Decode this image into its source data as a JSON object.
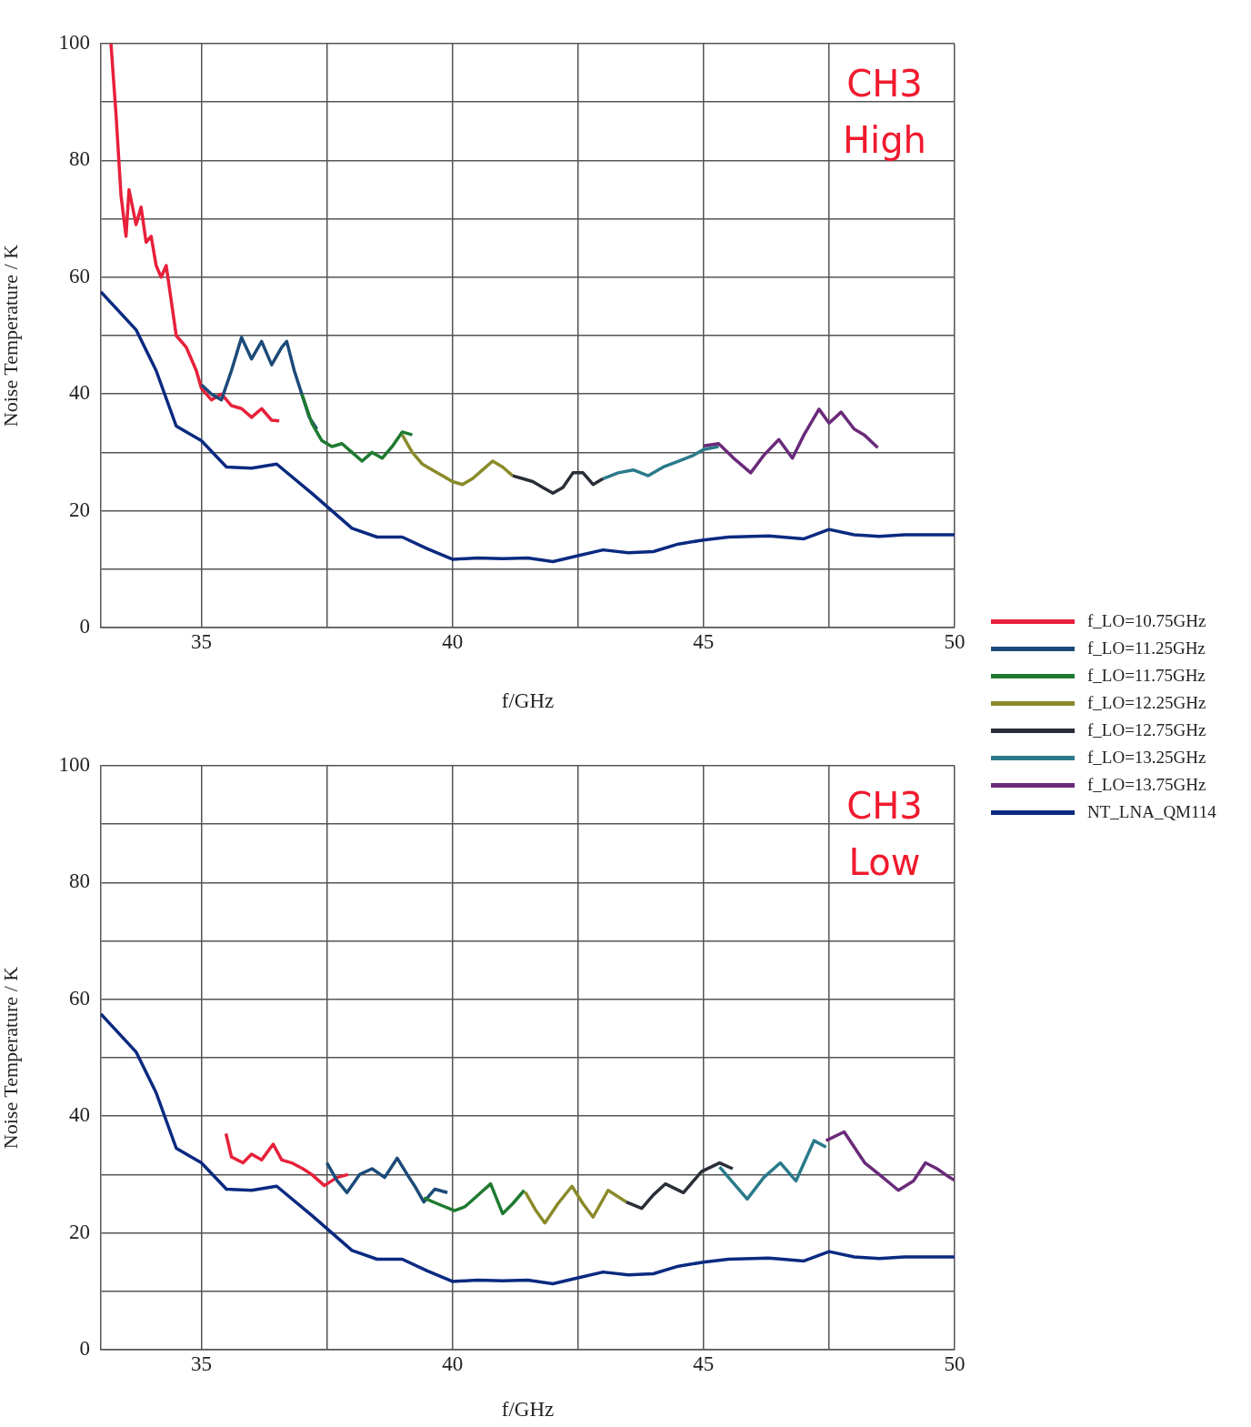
{
  "chart_data": [
    {
      "type": "line",
      "xlabel": "f/GHz",
      "ylabel": "Noise Temperature / K",
      "annotations": [
        "CH3 High"
      ],
      "xlim": [
        33,
        50
      ],
      "ylim": [
        0,
        100
      ],
      "xticks": [
        35,
        {
          "value": 37.5,
          "label": null
        },
        40,
        {
          "value": 42.5,
          "label": null
        },
        45,
        {
          "value": 47.5,
          "label": null
        },
        50
      ],
      "yticks": [
        0,
        {
          "value": 10,
          "label": null
        },
        20,
        {
          "value": 30,
          "label": null
        },
        40,
        {
          "value": 50,
          "label": null
        },
        60,
        {
          "value": 70,
          "label": null
        },
        80,
        {
          "value": 90,
          "label": null
        },
        100
      ],
      "grid": true,
      "legend": "right",
      "line_style": "solid",
      "series": [
        {
          "name": "f_LO=10.75GHz",
          "color": "#e8203a",
          "x": [
            33.2,
            33.3,
            33.4,
            33.5,
            33.56,
            33.7,
            33.8,
            33.9,
            34.0,
            34.1,
            34.2,
            34.3,
            34.4,
            34.5,
            34.7,
            34.9,
            35.0,
            35.2,
            35.4,
            35.6,
            35.8,
            36.0,
            36.2,
            36.4,
            36.55
          ],
          "values": [
            100,
            88,
            74,
            67,
            75,
            69,
            72,
            66,
            67,
            62,
            60,
            62,
            56,
            50,
            48,
            44,
            41,
            39,
            40,
            38,
            37.5,
            36,
            37.5,
            35.5,
            35.4
          ]
        },
        {
          "name": "f_LO=11.25GHz",
          "color": "#1c4a78",
          "x": [
            35.0,
            35.2,
            35.4,
            35.6,
            35.8,
            36.0,
            36.2,
            36.4,
            36.6,
            36.7,
            36.85,
            37.0,
            37.15,
            37.3
          ],
          "values": [
            41.6,
            40,
            39,
            44,
            49.7,
            46,
            49,
            45,
            48,
            49,
            44,
            40,
            36,
            34
          ]
        },
        {
          "name": "f_LO=11.75GHz",
          "color": "#1e7a30",
          "x": [
            37.0,
            37.2,
            37.4,
            37.6,
            37.8,
            38.0,
            38.2,
            38.4,
            38.6,
            38.8,
            39.0,
            39.2
          ],
          "values": [
            40,
            35,
            32,
            31,
            31.5,
            30,
            28.5,
            30,
            29,
            31,
            33.5,
            33
          ]
        },
        {
          "name": "f_LO=12.25GHz",
          "color": "#8a8a2a",
          "x": [
            39.0,
            39.2,
            39.4,
            39.6,
            39.8,
            40.0,
            40.2,
            40.4,
            40.6,
            40.8,
            41.0,
            41.2
          ],
          "values": [
            33,
            30,
            28,
            27,
            26,
            25,
            24.5,
            25.5,
            27,
            28.5,
            27.5,
            26
          ]
        },
        {
          "name": "f_LO=12.75GHz",
          "color": "#2a2e38",
          "x": [
            41.2,
            41.4,
            41.6,
            41.8,
            42.0,
            42.2,
            42.4,
            42.6,
            42.8,
            43.0
          ],
          "values": [
            26,
            25.5,
            25,
            24,
            23,
            24,
            26.5,
            26.5,
            24.5,
            25.5
          ]
        },
        {
          "name": "f_LO=13.25GHz",
          "color": "#2a7a8a",
          "x": [
            43.0,
            43.3,
            43.6,
            43.9,
            44.2,
            44.5,
            44.8,
            45.0,
            45.3
          ],
          "values": [
            25.5,
            26.5,
            27,
            26,
            27.5,
            28.5,
            29.5,
            30.5,
            31
          ]
        },
        {
          "name": "f_LO=13.75GHz",
          "color": "#6a2a7a",
          "x": [
            45.0,
            45.3,
            45.6,
            45.94,
            46.2,
            46.5,
            46.77,
            47.0,
            47.3,
            47.5,
            47.74,
            48.0,
            48.2,
            48.47
          ],
          "values": [
            31.1,
            31.5,
            29,
            26.5,
            29.5,
            32.2,
            29,
            33,
            37.4,
            35,
            36.9,
            34,
            33,
            30.8
          ]
        },
        {
          "name": "NT_LNA_QM114",
          "color": "#0a2a80",
          "x": [
            33,
            33.7,
            34.1,
            34.5,
            35,
            35.5,
            36,
            36.5,
            37.2,
            38,
            38.5,
            39,
            39.5,
            40,
            40.5,
            41,
            41.5,
            42,
            42.5,
            43,
            43.5,
            44,
            44.5,
            45,
            45.5,
            46.3,
            47,
            47.5,
            48,
            48.5,
            49,
            50
          ],
          "values": [
            57.5,
            51,
            44,
            34.5,
            32,
            27.5,
            27.3,
            28,
            23,
            17,
            15.5,
            15.5,
            13.5,
            11.7,
            11.9,
            11.8,
            11.9,
            11.3,
            12.3,
            13.3,
            12.8,
            13,
            14.3,
            15,
            15.5,
            15.7,
            15.2,
            16.8,
            15.9,
            15.6,
            15.9,
            15.9
          ]
        }
      ]
    },
    {
      "type": "line",
      "xlabel": "f/GHz",
      "ylabel": "Noise Temperature / K",
      "annotations": [
        "CH3 Low"
      ],
      "xlim": [
        33,
        50
      ],
      "ylim": [
        0,
        100
      ],
      "xticks": [
        35,
        {
          "value": 37.5,
          "label": null
        },
        40,
        {
          "value": 42.5,
          "label": null
        },
        45,
        {
          "value": 47.5,
          "label": null
        },
        50
      ],
      "yticks": [
        0,
        {
          "value": 10,
          "label": null
        },
        20,
        {
          "value": 30,
          "label": null
        },
        40,
        {
          "value": 50,
          "label": null
        },
        60,
        {
          "value": 70,
          "label": null
        },
        80,
        {
          "value": 90,
          "label": null
        },
        100
      ],
      "grid": true,
      "line_style": "solid",
      "series": [
        {
          "color": "#e8203a",
          "x": [
            35.49,
            35.6,
            35.83,
            36.0,
            36.2,
            36.43,
            36.6,
            36.8,
            37.02,
            37.2,
            37.45,
            37.7,
            37.92
          ],
          "values": [
            37,
            33,
            32,
            33.5,
            32.5,
            35.2,
            32.5,
            32,
            31,
            30,
            28.1,
            29.5,
            30
          ]
        },
        {
          "color": "#1c4a78",
          "x": [
            37.5,
            37.7,
            37.9,
            38.15,
            38.4,
            38.65,
            38.9,
            39.1,
            39.25,
            39.43,
            39.65,
            39.9
          ],
          "values": [
            32,
            29,
            26.9,
            30,
            31,
            29.5,
            32.8,
            30,
            28,
            25.3,
            27.5,
            26.9
          ]
        },
        {
          "color": "#1e7a30",
          "x": [
            39.43,
            39.7,
            40.04,
            40.25,
            40.5,
            40.76,
            41.0,
            41.2,
            41.43
          ],
          "values": [
            26,
            25,
            23.8,
            24.5,
            26.4,
            28.4,
            23.3,
            25,
            27.3
          ]
        },
        {
          "color": "#8a8a2a",
          "x": [
            41.45,
            41.65,
            41.84,
            42.1,
            42.38,
            42.6,
            42.8,
            43.1,
            43.46
          ],
          "values": [
            27,
            24,
            21.7,
            25,
            28,
            25,
            22.7,
            27.3,
            25.3
          ]
        },
        {
          "color": "#2a2e38",
          "x": [
            43.46,
            43.77,
            44.0,
            44.24,
            44.6,
            44.96,
            45.32,
            45.58
          ],
          "values": [
            25.3,
            24.2,
            26.5,
            28.4,
            26.9,
            30.5,
            32,
            31
          ]
        },
        {
          "color": "#2a7a8a",
          "x": [
            45.32,
            45.6,
            45.87,
            46.2,
            46.53,
            46.84,
            47.2,
            47.44
          ],
          "values": [
            31.3,
            28.5,
            25.8,
            29.5,
            32,
            28.9,
            35.8,
            34.7
          ]
        },
        {
          "color": "#6a2a7a",
          "x": [
            47.44,
            47.8,
            48.21,
            48.5,
            48.88,
            49.18,
            49.42,
            49.65,
            49.9,
            50
          ],
          "values": [
            35.8,
            37.3,
            32,
            30,
            27.3,
            28.9,
            32,
            31,
            29.5,
            29
          ]
        },
        {
          "color": "#0a2a80",
          "x": [
            33,
            33.7,
            34.1,
            34.5,
            35,
            35.5,
            36,
            36.5,
            37.2,
            38,
            38.5,
            39,
            39.5,
            40,
            40.5,
            41,
            41.5,
            42,
            42.5,
            43,
            43.5,
            44,
            44.5,
            45,
            45.5,
            46.3,
            47,
            47.5,
            48,
            48.5,
            49,
            50
          ],
          "values": [
            57.5,
            51,
            44,
            34.5,
            32,
            27.5,
            27.3,
            28,
            23,
            17,
            15.5,
            15.5,
            13.5,
            11.7,
            11.9,
            11.8,
            11.9,
            11.3,
            12.3,
            13.3,
            12.8,
            13,
            14.3,
            15,
            15.5,
            15.7,
            15.2,
            16.8,
            15.9,
            15.6,
            15.9,
            15.9
          ]
        }
      ]
    }
  ]
}
